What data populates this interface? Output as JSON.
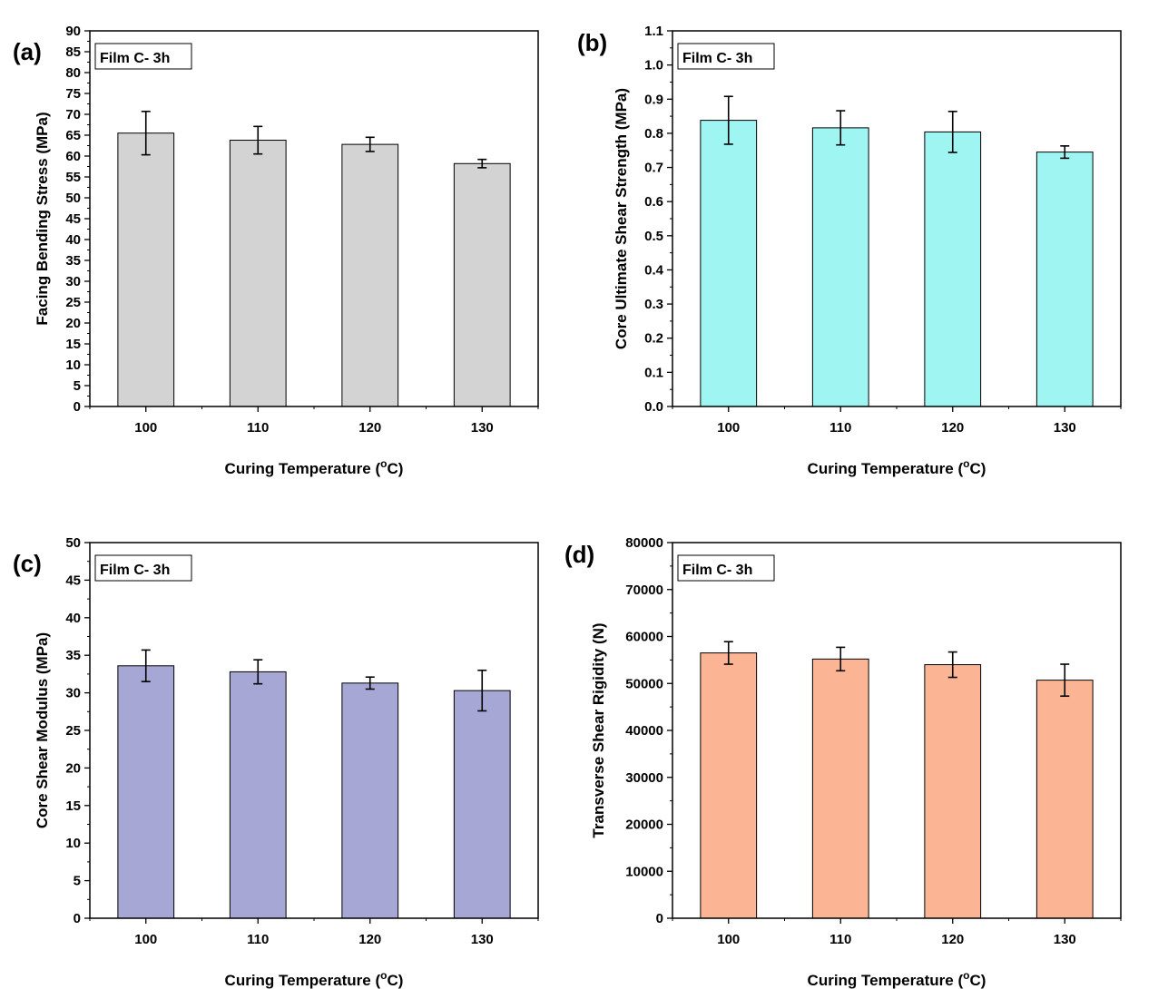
{
  "chart_data": [
    {
      "type": "bar",
      "panel_label": "(a)",
      "legend_text": "Film C- 3h",
      "xlabel_main": "Curing Temperature (",
      "xlabel_sup": "o",
      "xlabel_end": "C)",
      "ylabel": "Facing Bending Stress (MPa)",
      "categories": [
        "100",
        "110",
        "120",
        "130"
      ],
      "values": [
        65.5,
        63.8,
        62.8,
        58.2
      ],
      "errors": [
        5.2,
        3.3,
        1.7,
        1.0
      ],
      "ylim": [
        0,
        90
      ],
      "yticks": [
        "0",
        "5",
        "10",
        "15",
        "20",
        "25",
        "30",
        "35",
        "40",
        "45",
        "50",
        "55",
        "60",
        "65",
        "70",
        "75",
        "80",
        "85",
        "90"
      ],
      "ytick_values": [
        0,
        5,
        10,
        15,
        20,
        25,
        30,
        35,
        40,
        45,
        50,
        55,
        60,
        65,
        70,
        75,
        80,
        85,
        90
      ],
      "bar_color": "#d3d3d3",
      "grid": false,
      "legend_position": "top-left"
    },
    {
      "type": "bar",
      "panel_label": "(b)",
      "legend_text": "Film C- 3h",
      "xlabel_main": "Curing Temperature (",
      "xlabel_sup": "o",
      "xlabel_end": "C)",
      "ylabel": "Core Ultimate Shear Strength (MPa)",
      "categories": [
        "100",
        "110",
        "120",
        "130"
      ],
      "values": [
        0.838,
        0.816,
        0.804,
        0.745
      ],
      "errors": [
        0.07,
        0.05,
        0.06,
        0.018
      ],
      "ylim": [
        0,
        1.1
      ],
      "yticks": [
        "0.0",
        "0.1",
        "0.2",
        "0.3",
        "0.4",
        "0.5",
        "0.6",
        "0.7",
        "0.8",
        "0.9",
        "1.0",
        "1.1"
      ],
      "ytick_values": [
        0,
        0.1,
        0.2,
        0.3,
        0.4,
        0.5,
        0.6,
        0.7,
        0.8,
        0.9,
        1.0,
        1.1
      ],
      "bar_color": "#9ef5f2",
      "grid": false,
      "legend_position": "top-left"
    },
    {
      "type": "bar",
      "panel_label": "(c)",
      "legend_text": "Film C- 3h",
      "xlabel_main": "Curing Temperature (",
      "xlabel_sup": "o",
      "xlabel_end": "C)",
      "ylabel": "Core Shear Modulus (MPa)",
      "categories": [
        "100",
        "110",
        "120",
        "130"
      ],
      "values": [
        33.6,
        32.8,
        31.3,
        30.3
      ],
      "errors": [
        2.1,
        1.6,
        0.8,
        2.7
      ],
      "ylim": [
        0,
        50
      ],
      "yticks": [
        "0",
        "5",
        "10",
        "15",
        "20",
        "25",
        "30",
        "35",
        "40",
        "45",
        "50"
      ],
      "ytick_values": [
        0,
        5,
        10,
        15,
        20,
        25,
        30,
        35,
        40,
        45,
        50
      ],
      "bar_color": "#a7a7d6",
      "grid": false,
      "legend_position": "top-left"
    },
    {
      "type": "bar",
      "panel_label": "(d)",
      "legend_text": "Film C- 3h",
      "xlabel_main": "Curing Temperature (",
      "xlabel_sup": "o",
      "xlabel_end": "C)",
      "ylabel": "Transverse Shear Rigidity (N)",
      "categories": [
        "100",
        "110",
        "120",
        "130"
      ],
      "values": [
        56500,
        55200,
        54000,
        50700
      ],
      "errors": [
        2400,
        2500,
        2700,
        3400
      ],
      "ylim": [
        0,
        80000
      ],
      "yticks": [
        "0",
        "10000",
        "20000",
        "30000",
        "40000",
        "50000",
        "60000",
        "70000",
        "80000"
      ],
      "ytick_values": [
        0,
        10000,
        20000,
        30000,
        40000,
        50000,
        60000,
        70000,
        80000
      ],
      "bar_color": "#fbb594",
      "grid": false,
      "legend_position": "top-left"
    }
  ]
}
